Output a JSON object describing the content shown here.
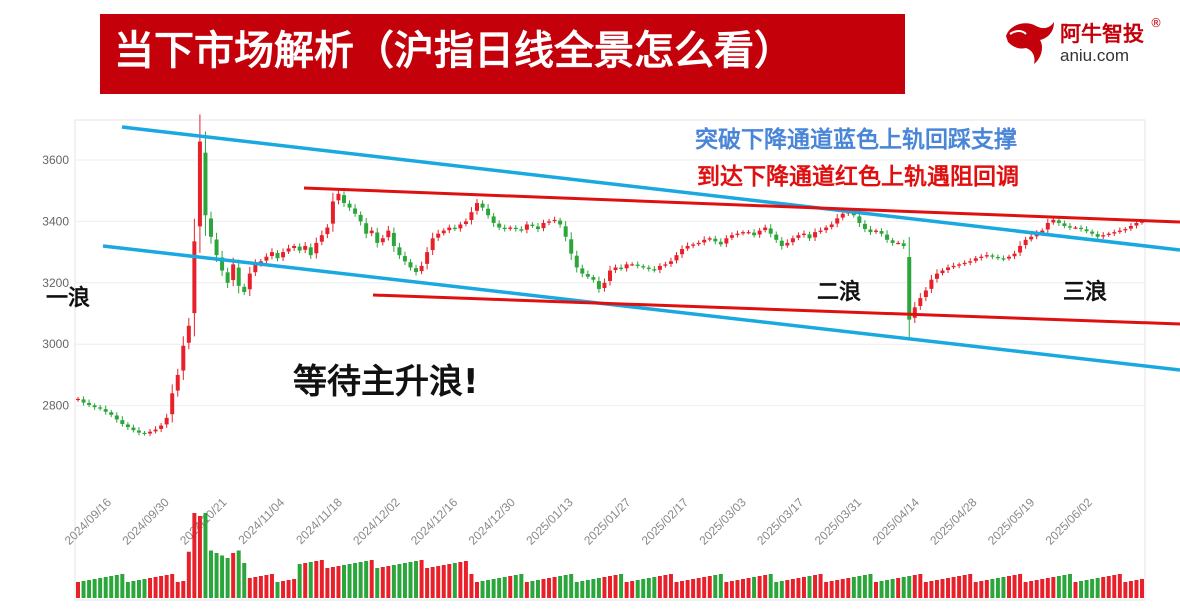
{
  "header": {
    "title": "当下市场解析（沪指日线全景怎么看）"
  },
  "logo": {
    "cn": "阿牛智投",
    "en": "aniu.com",
    "reg": "®",
    "brand_color": "#c4000a"
  },
  "chart_data": {
    "type": "candlestick",
    "up_color": "#e8202a",
    "down_color": "#2aa63a",
    "upper_channel_color": "#1aa8e0",
    "lower_channel_color": "#e01010",
    "y_ticks": [
      "3600",
      "3400",
      "3200",
      "3000",
      "2800"
    ],
    "ylim": [
      2600,
      3700
    ],
    "x_ticks": [
      "2024/09/16",
      "2024/09/30",
      "2024/10/21",
      "2024/11/04",
      "2024/11/18",
      "2024/12/02",
      "2024/12/16",
      "2024/12/30",
      "2025/01/13",
      "2025/01/27",
      "2025/02/17",
      "2025/03/03",
      "2025/03/17",
      "2025/03/31",
      "2025/04/14",
      "2025/04/28",
      "2025/05/19",
      "2025/06/02"
    ],
    "close": [
      2822,
      2810,
      2802,
      2795,
      2790,
      2780,
      2770,
      2755,
      2740,
      2730,
      2720,
      2712,
      2708,
      2715,
      2722,
      2735,
      2760,
      2840,
      2900,
      2995,
      3060,
      3335,
      3660,
      3420,
      3350,
      3290,
      3240,
      3200,
      3260,
      3190,
      3170,
      3230,
      3260,
      3270,
      3285,
      3300,
      3280,
      3300,
      3312,
      3320,
      3305,
      3320,
      3290,
      3330,
      3355,
      3380,
      3465,
      3490,
      3460,
      3445,
      3425,
      3400,
      3360,
      3370,
      3330,
      3345,
      3370,
      3320,
      3290,
      3270,
      3250,
      3235,
      3255,
      3300,
      3345,
      3360,
      3370,
      3380,
      3375,
      3390,
      3400,
      3430,
      3460,
      3445,
      3420,
      3395,
      3380,
      3375,
      3380,
      3375,
      3370,
      3390,
      3385,
      3375,
      3395,
      3400,
      3405,
      3390,
      3350,
      3295,
      3250,
      3230,
      3220,
      3210,
      3180,
      3200,
      3240,
      3250,
      3245,
      3260,
      3260,
      3255,
      3250,
      3245,
      3240,
      3255,
      3260,
      3270,
      3290,
      3310,
      3320,
      3325,
      3330,
      3340,
      3345,
      3335,
      3325,
      3345,
      3355,
      3360,
      3365,
      3365,
      3355,
      3370,
      3380,
      3360,
      3340,
      3320,
      3330,
      3345,
      3355,
      3360,
      3345,
      3365,
      3370,
      3380,
      3390,
      3410,
      3425,
      3430,
      3420,
      3395,
      3375,
      3365,
      3370,
      3360,
      3340,
      3330,
      3330,
      3320,
      3080,
      3120,
      3150,
      3175,
      3210,
      3230,
      3240,
      3250,
      3255,
      3260,
      3265,
      3270,
      3280,
      3285,
      3290,
      3285,
      3280,
      3278,
      3285,
      3295,
      3320,
      3340,
      3350,
      3360,
      3370,
      3395,
      3405,
      3395,
      3385,
      3380,
      3380,
      3375,
      3368,
      3360,
      3350,
      3355,
      3360,
      3365,
      3370,
      3375,
      3385,
      3395,
      3400
    ]
  },
  "annotations": {
    "line1": "突破下降通道蓝色上轨回踩支撑",
    "line1_color": "#4a86d8",
    "line2": "到达下降通道红色上轨遇阻回调",
    "line2_color": "#e01010",
    "wave1": "一浪",
    "wave2": "二浪",
    "wave3": "三浪",
    "waiting": "等待主升浪!"
  }
}
